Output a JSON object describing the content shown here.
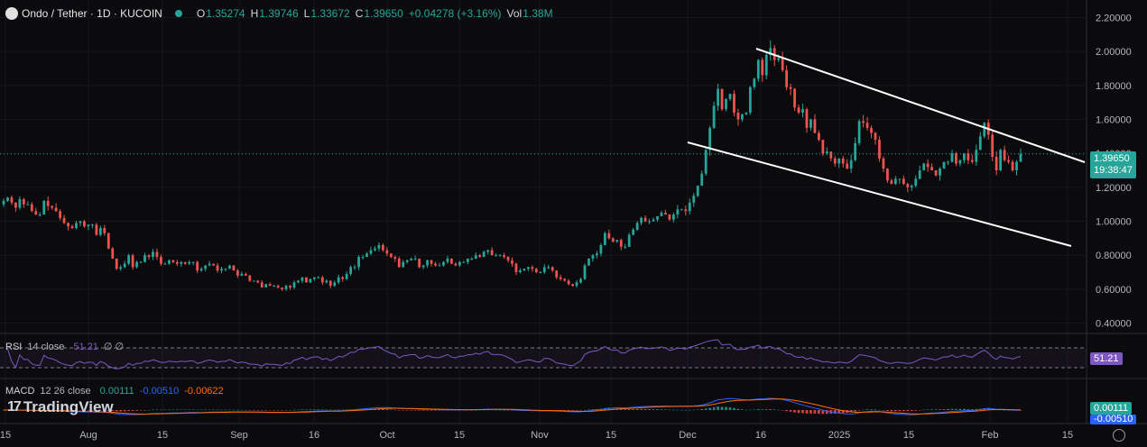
{
  "header": {
    "symbol": "Ondo / Tether · 1D · KUCOIN",
    "o_label": "O",
    "o": "1.35274",
    "h_label": "H",
    "h": "1.39746",
    "l_label": "L",
    "l": "1.33672",
    "c_label": "C",
    "c": "1.39650",
    "change": "+0.04278 (+3.16%)",
    "vol_label": "Vol",
    "vol": "1.38M"
  },
  "price_tag": {
    "price": "1.39650",
    "countdown": "19:38:47"
  },
  "rsi": {
    "name": "RSI",
    "params": "14 close",
    "value": "51.21",
    "extra": "∅ ∅",
    "tag": "51.21"
  },
  "macd": {
    "name": "MACD",
    "params": "12 26 close",
    "v1": "0.00111",
    "v2": "-0.00510",
    "v3": "-0.00622",
    "tag1": "0.00111",
    "tag2": "-0.00510"
  },
  "brand": "TradingView",
  "colors": {
    "up": "#26a69a",
    "down": "#ef5350",
    "bg": "#0b0b0e",
    "rsi": "#7e57c2",
    "macd": "#2962ff",
    "signal": "#ff6d00"
  },
  "chart_data": {
    "type": "candlestick",
    "y_ticks": [
      "2.20000",
      "2.00000",
      "1.80000",
      "1.60000",
      "1.40000",
      "1.20000",
      "1.00000",
      "0.80000",
      "0.60000",
      "0.40000"
    ],
    "ylim": [
      0.35,
      2.25
    ],
    "x_ticks": [
      "15",
      "Aug",
      "15",
      "Sep",
      "16",
      "Oct",
      "15",
      "Nov",
      "15",
      "Dec",
      "16",
      "2025",
      "15",
      "Feb",
      "15"
    ],
    "last_close": 1.3965,
    "closes": [
      1.12,
      1.14,
      1.11,
      1.08,
      1.13,
      1.1,
      1.1,
      1.06,
      1.04,
      1.04,
      1.12,
      1.09,
      1.08,
      1.06,
      1.02,
      0.99,
      0.97,
      0.96,
      0.99,
      1.0,
      0.97,
      0.98,
      0.98,
      0.92,
      0.96,
      0.93,
      0.84,
      0.78,
      0.72,
      0.73,
      0.75,
      0.8,
      0.73,
      0.76,
      0.76,
      0.8,
      0.79,
      0.82,
      0.79,
      0.75,
      0.75,
      0.77,
      0.76,
      0.75,
      0.76,
      0.75,
      0.76,
      0.76,
      0.71,
      0.72,
      0.74,
      0.75,
      0.74,
      0.71,
      0.72,
      0.72,
      0.74,
      0.71,
      0.68,
      0.69,
      0.68,
      0.65,
      0.65,
      0.64,
      0.61,
      0.63,
      0.62,
      0.62,
      0.61,
      0.6,
      0.62,
      0.61,
      0.64,
      0.65,
      0.67,
      0.64,
      0.66,
      0.67,
      0.67,
      0.64,
      0.65,
      0.62,
      0.64,
      0.67,
      0.66,
      0.69,
      0.73,
      0.73,
      0.79,
      0.79,
      0.81,
      0.83,
      0.84,
      0.86,
      0.83,
      0.81,
      0.79,
      0.78,
      0.73,
      0.76,
      0.77,
      0.78,
      0.78,
      0.73,
      0.74,
      0.77,
      0.75,
      0.74,
      0.74,
      0.76,
      0.78,
      0.75,
      0.74,
      0.76,
      0.76,
      0.78,
      0.78,
      0.8,
      0.79,
      0.82,
      0.83,
      0.8,
      0.8,
      0.8,
      0.79,
      0.77,
      0.75,
      0.7,
      0.71,
      0.72,
      0.73,
      0.72,
      0.7,
      0.7,
      0.73,
      0.73,
      0.71,
      0.67,
      0.66,
      0.65,
      0.63,
      0.62,
      0.64,
      0.66,
      0.74,
      0.78,
      0.8,
      0.81,
      0.86,
      0.93,
      0.9,
      0.88,
      0.89,
      0.85,
      0.85,
      0.92,
      0.95,
      0.99,
      1.02,
      1.0,
      1.0,
      1.01,
      1.03,
      1.05,
      1.04,
      1.01,
      1.04,
      1.07,
      1.07,
      1.06,
      1.11,
      1.15,
      1.21,
      1.28,
      1.42,
      1.55,
      1.68,
      1.78,
      1.66,
      1.72,
      1.75,
      1.64,
      1.6,
      1.63,
      1.64,
      1.79,
      1.84,
      1.95,
      1.86,
      1.98,
      2.02,
      1.95,
      1.96,
      1.89,
      1.79,
      1.78,
      1.67,
      1.64,
      1.66,
      1.55,
      1.6,
      1.52,
      1.48,
      1.4,
      1.41,
      1.37,
      1.34,
      1.37,
      1.34,
      1.31,
      1.36,
      1.46,
      1.59,
      1.58,
      1.55,
      1.52,
      1.48,
      1.37,
      1.31,
      1.24,
      1.22,
      1.25,
      1.25,
      1.22,
      1.2,
      1.21,
      1.25,
      1.3,
      1.34,
      1.32,
      1.3,
      1.27,
      1.31,
      1.35,
      1.35,
      1.4,
      1.34,
      1.36,
      1.4,
      1.36,
      1.35,
      1.42,
      1.5,
      1.58,
      1.51,
      1.38,
      1.3,
      1.42,
      1.36,
      1.35,
      1.3,
      1.35,
      1.3965
    ]
  }
}
